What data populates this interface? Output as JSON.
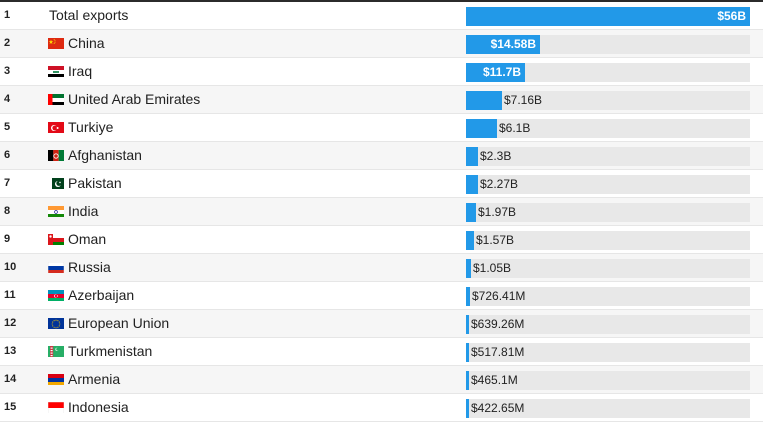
{
  "chart_data": {
    "type": "bar",
    "orientation": "horizontal",
    "value_unit": "USD",
    "xlim": [
      0,
      56000000000
    ],
    "rows": [
      {
        "rank": "1",
        "label": "Total exports",
        "value": 56000000000,
        "value_label": "$56B",
        "flag": null
      },
      {
        "rank": "2",
        "label": "China",
        "value": 14580000000,
        "value_label": "$14.58B",
        "flag": "china-flag"
      },
      {
        "rank": "3",
        "label": "Iraq",
        "value": 11700000000,
        "value_label": "$11.7B",
        "flag": "iraq-flag"
      },
      {
        "rank": "4",
        "label": "United Arab Emirates",
        "value": 7160000000,
        "value_label": "$7.16B",
        "flag": "uae-flag"
      },
      {
        "rank": "5",
        "label": "Turkiye",
        "value": 6100000000,
        "value_label": "$6.1B",
        "flag": "turkiye-flag"
      },
      {
        "rank": "6",
        "label": "Afghanistan",
        "value": 2300000000,
        "value_label": "$2.3B",
        "flag": "afghanistan-flag"
      },
      {
        "rank": "7",
        "label": "Pakistan",
        "value": 2270000000,
        "value_label": "$2.27B",
        "flag": "pakistan-flag"
      },
      {
        "rank": "8",
        "label": "India",
        "value": 1970000000,
        "value_label": "$1.97B",
        "flag": "india-flag"
      },
      {
        "rank": "9",
        "label": "Oman",
        "value": 1570000000,
        "value_label": "$1.57B",
        "flag": "oman-flag"
      },
      {
        "rank": "10",
        "label": "Russia",
        "value": 1050000000,
        "value_label": "$1.05B",
        "flag": "russia-flag"
      },
      {
        "rank": "11",
        "label": "Azerbaijan",
        "value": 726410000,
        "value_label": "$726.41M",
        "flag": "azerbaijan-flag"
      },
      {
        "rank": "12",
        "label": "European Union",
        "value": 639260000,
        "value_label": "$639.26M",
        "flag": "eu-flag"
      },
      {
        "rank": "13",
        "label": "Turkmenistan",
        "value": 517810000,
        "value_label": "$517.81M",
        "flag": "turkmenistan-flag"
      },
      {
        "rank": "14",
        "label": "Armenia",
        "value": 465100000,
        "value_label": "$465.1M",
        "flag": "armenia-flag"
      },
      {
        "rank": "15",
        "label": "Indonesia",
        "value": 422650000,
        "value_label": "$422.65M",
        "flag": "indonesia-flag"
      }
    ],
    "colors": {
      "bar": "#2299e8",
      "track": "#e8e8e8",
      "stripe": "#f6f6f6"
    }
  }
}
